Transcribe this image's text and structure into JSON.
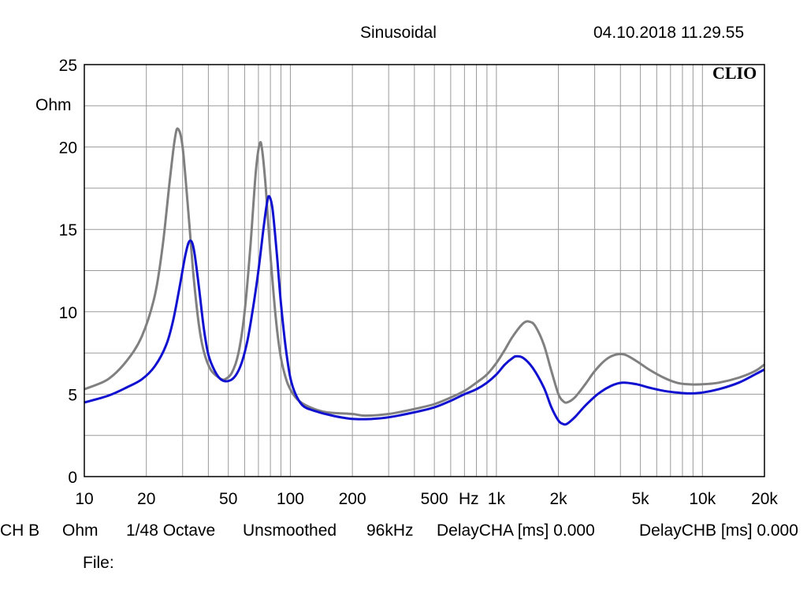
{
  "header": {
    "mode": "Sinusoidal",
    "timestamp": "04.10.2018 11.29.55",
    "logo": "CLIO"
  },
  "footer": {
    "channel": "CH B",
    "unit": "Ohm",
    "resolution": "1/48 Octave",
    "smoothing": "Unsmoothed",
    "sample_rate": "96kHz",
    "delay_cha": "DelayCHA [ms] 0.000",
    "delay_chb": "DelayCHB [ms] 0.000",
    "file_label": "File:"
  },
  "chart_data": {
    "type": "line",
    "title": "",
    "xlabel": "",
    "ylabel": "Ohm",
    "xscale": "log",
    "xlim": [
      10,
      20000
    ],
    "ylim": [
      0,
      25
    ],
    "grid": true,
    "x_unit_label": "Hz",
    "x_ticks": [
      {
        "value": 10,
        "label": "10"
      },
      {
        "value": 20,
        "label": "20"
      },
      {
        "value": 50,
        "label": "50"
      },
      {
        "value": 100,
        "label": "100"
      },
      {
        "value": 200,
        "label": "200"
      },
      {
        "value": 500,
        "label": "500"
      },
      {
        "value": 1000,
        "label": "1k"
      },
      {
        "value": 2000,
        "label": "2k"
      },
      {
        "value": 5000,
        "label": "5k"
      },
      {
        "value": 10000,
        "label": "10k"
      },
      {
        "value": 20000,
        "label": "20k"
      }
    ],
    "y_ticks": [
      {
        "value": 0,
        "label": "0"
      },
      {
        "value": 5,
        "label": "5"
      },
      {
        "value": 10,
        "label": "10"
      },
      {
        "value": 15,
        "label": "15"
      },
      {
        "value": 20,
        "label": "20"
      },
      {
        "value": 25,
        "label": "25"
      }
    ],
    "series": [
      {
        "color": "#808080",
        "points": [
          [
            10,
            5.3
          ],
          [
            13,
            5.9
          ],
          [
            16,
            7.0
          ],
          [
            19,
            8.5
          ],
          [
            22,
            11.0
          ],
          [
            24,
            14.0
          ],
          [
            26,
            18.0
          ],
          [
            27.5,
            20.5
          ],
          [
            28.5,
            21.1
          ],
          [
            30,
            20.0
          ],
          [
            32,
            16.0
          ],
          [
            34,
            12.0
          ],
          [
            36,
            9.2
          ],
          [
            38,
            7.6
          ],
          [
            41,
            6.5
          ],
          [
            45,
            6.0
          ],
          [
            48,
            5.9
          ],
          [
            52,
            6.3
          ],
          [
            56,
            7.5
          ],
          [
            60,
            10.0
          ],
          [
            64,
            14.0
          ],
          [
            68,
            18.5
          ],
          [
            71,
            20.2
          ],
          [
            73,
            19.8
          ],
          [
            76,
            17.5
          ],
          [
            80,
            13.5
          ],
          [
            85,
            9.6
          ],
          [
            90,
            7.2
          ],
          [
            96,
            5.8
          ],
          [
            102,
            5.1
          ],
          [
            110,
            4.6
          ],
          [
            125,
            4.2
          ],
          [
            150,
            3.9
          ],
          [
            200,
            3.8
          ],
          [
            230,
            3.7
          ],
          [
            300,
            3.8
          ],
          [
            400,
            4.1
          ],
          [
            500,
            4.4
          ],
          [
            600,
            4.8
          ],
          [
            700,
            5.2
          ],
          [
            800,
            5.7
          ],
          [
            900,
            6.2
          ],
          [
            1000,
            6.9
          ],
          [
            1100,
            7.7
          ],
          [
            1200,
            8.5
          ],
          [
            1350,
            9.3
          ],
          [
            1450,
            9.4
          ],
          [
            1550,
            9.1
          ],
          [
            1700,
            8.0
          ],
          [
            1850,
            6.4
          ],
          [
            2000,
            5.0
          ],
          [
            2100,
            4.6
          ],
          [
            2200,
            4.5
          ],
          [
            2400,
            4.8
          ],
          [
            2700,
            5.6
          ],
          [
            3000,
            6.4
          ],
          [
            3400,
            7.1
          ],
          [
            3800,
            7.4
          ],
          [
            4200,
            7.4
          ],
          [
            4800,
            7.0
          ],
          [
            5500,
            6.5
          ],
          [
            6500,
            6.0
          ],
          [
            7500,
            5.7
          ],
          [
            8500,
            5.6
          ],
          [
            10000,
            5.6
          ],
          [
            12000,
            5.7
          ],
          [
            15000,
            6.0
          ],
          [
            18000,
            6.4
          ],
          [
            20000,
            6.8
          ]
        ]
      },
      {
        "color": "#1010d0",
        "points": [
          [
            10,
            4.5
          ],
          [
            13,
            4.9
          ],
          [
            16,
            5.4
          ],
          [
            19,
            5.9
          ],
          [
            22,
            6.7
          ],
          [
            25,
            8.0
          ],
          [
            27,
            9.5
          ],
          [
            29,
            11.5
          ],
          [
            31,
            13.5
          ],
          [
            32.5,
            14.3
          ],
          [
            34,
            13.8
          ],
          [
            36,
            11.5
          ],
          [
            38,
            9.0
          ],
          [
            40,
            7.4
          ],
          [
            43,
            6.4
          ],
          [
            46,
            5.9
          ],
          [
            50,
            5.8
          ],
          [
            54,
            6.1
          ],
          [
            58,
            6.9
          ],
          [
            62,
            8.3
          ],
          [
            66,
            10.3
          ],
          [
            70,
            12.5
          ],
          [
            74,
            15.0
          ],
          [
            77,
            16.6
          ],
          [
            79,
            17.0
          ],
          [
            82,
            16.2
          ],
          [
            86,
            13.5
          ],
          [
            90,
            10.5
          ],
          [
            95,
            7.8
          ],
          [
            100,
            6.0
          ],
          [
            106,
            5.0
          ],
          [
            115,
            4.3
          ],
          [
            130,
            4.0
          ],
          [
            160,
            3.7
          ],
          [
            200,
            3.5
          ],
          [
            250,
            3.5
          ],
          [
            300,
            3.6
          ],
          [
            400,
            3.9
          ],
          [
            500,
            4.2
          ],
          [
            600,
            4.6
          ],
          [
            700,
            5.0
          ],
          [
            800,
            5.3
          ],
          [
            900,
            5.7
          ],
          [
            1000,
            6.2
          ],
          [
            1100,
            6.8
          ],
          [
            1200,
            7.2
          ],
          [
            1250,
            7.3
          ],
          [
            1350,
            7.2
          ],
          [
            1500,
            6.6
          ],
          [
            1700,
            5.4
          ],
          [
            1850,
            4.2
          ],
          [
            2000,
            3.4
          ],
          [
            2100,
            3.2
          ],
          [
            2200,
            3.2
          ],
          [
            2400,
            3.6
          ],
          [
            2700,
            4.3
          ],
          [
            3100,
            5.0
          ],
          [
            3600,
            5.5
          ],
          [
            4100,
            5.7
          ],
          [
            4800,
            5.6
          ],
          [
            5500,
            5.4
          ],
          [
            6500,
            5.2
          ],
          [
            7500,
            5.1
          ],
          [
            8500,
            5.05
          ],
          [
            10000,
            5.1
          ],
          [
            12000,
            5.3
          ],
          [
            15000,
            5.7
          ],
          [
            18000,
            6.2
          ],
          [
            20000,
            6.5
          ]
        ]
      }
    ]
  }
}
